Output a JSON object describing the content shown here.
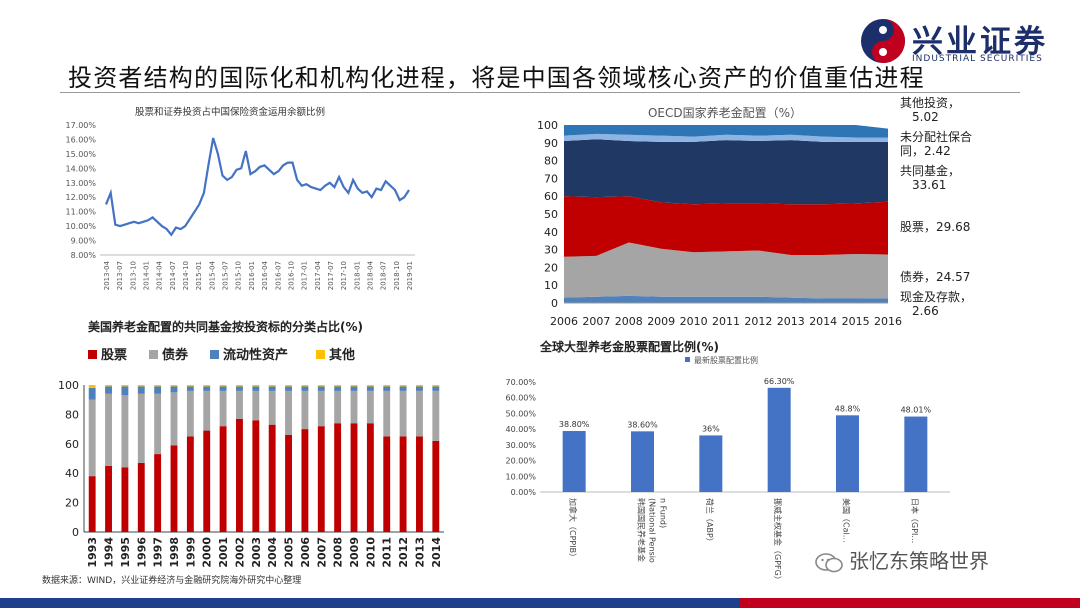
{
  "slide": {
    "title": "投资者结构的国际化和机构化进程，将是中国各领域核心资产的价值重估进程",
    "source_note": "数据来源：WIND，兴业证券经济与金融研究院海外研究中心整理",
    "watermark": "张忆东策略世界"
  },
  "logo": {
    "name_cn": "兴业证券",
    "name_en": "INDUSTRIAL SECURITIES"
  },
  "colors": {
    "brand_blue": "#1d2f6a",
    "brand_red": "#c0001e",
    "line_blue": "#4472c4"
  },
  "chart_data": [
    {
      "id": "insurance-equity-ratio",
      "type": "line",
      "title": "股票和证券投资占中国保险资金运用余额比例",
      "ylim": [
        8,
        17
      ],
      "y_ticks": [
        "8.00%",
        "9.00%",
        "10.00%",
        "11.00%",
        "12.00%",
        "13.00%",
        "14.00%",
        "15.00%",
        "16.00%",
        "17.00%"
      ],
      "x_ticks": [
        "2013-04",
        "2013-07",
        "2013-10",
        "2014-01",
        "2014-04",
        "2014-07",
        "2014-10",
        "2015-01",
        "2015-04",
        "2015-07",
        "2015-10",
        "2016-01",
        "2016-04",
        "2016-07",
        "2016-10",
        "2017-01",
        "2017-04",
        "2017-07",
        "2017-10",
        "2018-01",
        "2018-04",
        "2018-07",
        "2018-10",
        "2019-01"
      ],
      "series": [
        {
          "values": [
            11.5,
            12.3,
            10.1,
            10.0,
            10.1,
            10.2,
            10.3,
            10.2,
            10.3,
            10.4,
            10.6,
            10.3,
            10.0,
            9.8,
            9.4,
            9.9,
            9.8,
            10.0,
            10.5,
            11.0,
            11.5,
            12.3,
            14.3,
            16.1,
            15.0,
            13.5,
            13.2,
            13.4,
            13.9,
            14.0,
            15.2,
            13.6,
            13.8,
            14.1,
            14.2,
            13.9,
            13.6,
            13.8,
            14.2,
            14.4,
            14.4,
            13.2,
            12.8,
            12.9,
            12.7,
            12.6,
            12.5,
            12.8,
            13.0,
            12.7,
            13.4,
            12.7,
            12.3,
            13.2,
            12.6,
            12.3,
            12.4,
            12.0,
            12.6,
            12.5,
            13.1,
            12.8,
            12.5,
            11.8,
            12.0,
            12.5
          ]
        }
      ]
    },
    {
      "id": "oecd-pension-allocation",
      "type": "area",
      "title": "OECD国家养老金配置（%）",
      "ylim": [
        0,
        100
      ],
      "y_ticks": [
        "0",
        "10",
        "20",
        "30",
        "40",
        "50",
        "60",
        "70",
        "80",
        "90",
        "100"
      ],
      "categories": [
        "2006",
        "2007",
        "2008",
        "2009",
        "2010",
        "2011",
        "2012",
        "2013",
        "2014",
        "2015",
        "2016"
      ],
      "series": [
        {
          "name": "现金及存款",
          "values": [
            3,
            3.5,
            4,
            3.5,
            3.5,
            3.5,
            3.5,
            3,
            2.5,
            2.5,
            2.66
          ],
          "color": "#4f81bd"
        },
        {
          "name": "债券",
          "values": [
            23,
            23,
            30,
            27,
            25,
            25.5,
            26,
            24,
            24.5,
            25,
            24.57
          ],
          "color": "#a5a5a5"
        },
        {
          "name": "股票",
          "values": [
            34,
            33,
            26,
            26,
            27,
            27,
            26.5,
            28.5,
            28.5,
            28.5,
            29.68
          ],
          "color": "#c00000"
        },
        {
          "name": "共同基金",
          "values": [
            31,
            32.5,
            31,
            34,
            35,
            35.5,
            35,
            36,
            35,
            34.5,
            33.61
          ],
          "color": "#1f3864"
        },
        {
          "name": "未分配社保合同",
          "values": [
            3,
            3,
            3.5,
            3.5,
            3,
            3,
            3,
            3,
            3,
            2.5,
            2.42
          ],
          "color": "#8eb4e3"
        },
        {
          "name": "其他投资",
          "values": [
            6,
            5,
            5.5,
            6,
            6.5,
            5.5,
            6,
            5.5,
            6.5,
            7,
            5.02
          ],
          "color": "#2e75b6"
        }
      ],
      "annotations": [
        {
          "text": "其他投资，5.02"
        },
        {
          "text": "未分配社保合同，2.42"
        },
        {
          "text": "共同基金，33.61"
        },
        {
          "text": "股票，29.68"
        },
        {
          "text": "债券，24.57"
        },
        {
          "text": "现金及存款，2.66"
        }
      ]
    },
    {
      "id": "us-pension-mutual-fund",
      "type": "bar",
      "stacked": true,
      "title": "美国养老金配置的共同基金按投资标的分类占比(%)",
      "ylim": [
        0,
        100
      ],
      "y_ticks": [
        "0",
        "20",
        "40",
        "60",
        "80",
        "100"
      ],
      "legend_position": "top",
      "categories": [
        "1993",
        "1994",
        "1995",
        "1996",
        "1997",
        "1998",
        "1999",
        "2000",
        "2001",
        "2002",
        "2003",
        "2004",
        "2005",
        "2006",
        "2007",
        "2008",
        "2009",
        "2010",
        "2011",
        "2012",
        "2013",
        "2014"
      ],
      "series": [
        {
          "name": "股票",
          "color": "#c00000",
          "values": [
            38,
            45,
            44,
            47,
            53,
            59,
            65,
            69,
            72,
            77,
            76,
            73,
            66,
            70,
            72,
            74,
            74,
            74,
            65,
            65,
            65,
            62
          ]
        },
        {
          "name": "债券",
          "color": "#a5a5a5",
          "values": [
            52,
            49,
            49,
            47,
            41,
            36,
            31,
            27,
            24,
            19,
            20,
            23,
            30,
            26,
            24,
            22,
            22,
            22,
            31,
            31,
            31,
            34
          ]
        },
        {
          "name": "流动性资产",
          "color": "#4f81bd",
          "values": [
            8,
            5,
            6,
            5,
            5,
            4,
            3,
            3,
            3,
            3,
            3,
            3,
            3,
            3,
            3,
            3,
            3,
            3,
            3,
            3,
            3,
            3
          ]
        },
        {
          "name": "其他",
          "color": "#ffc000",
          "values": [
            2,
            1,
            1,
            1,
            1,
            1,
            1,
            1,
            1,
            1,
            1,
            1,
            1,
            1,
            1,
            1,
            1,
            1,
            1,
            1,
            1,
            1
          ]
        }
      ]
    },
    {
      "id": "global-pension-equity",
      "type": "bar",
      "title": "全球大型养老金股票配置比例(%)",
      "legend": "最新股票配置比例",
      "ylim": [
        0,
        70
      ],
      "y_ticks": [
        "0.00%",
        "10.00%",
        "20.00%",
        "30.00%",
        "40.00%",
        "50.00%",
        "60.00%",
        "70.00%"
      ],
      "categories": [
        "加拿大（CPPIB）",
        "韩国国民养老基金(NationalPension Fund)",
        "荷兰（ABP）",
        "挪威主权基金（GPFG）",
        "美国（CalPERS）",
        "日本（GPIF）"
      ],
      "tick_labels": [
        "加拿大（CPPIB）",
        "韩国国民养老基金(National Pension Fund)",
        "荷兰（ABP）",
        "挪威主权基金（GPFG）",
        "美国（Cal…",
        "日本（GPI…"
      ],
      "values": [
        38.8,
        38.6,
        36,
        66.3,
        48.8,
        48.01
      ],
      "data_labels": [
        "38.80%",
        "38.60%",
        "36%",
        "66.30%",
        "48.8%",
        "48.01%"
      ],
      "color": "#4472c4"
    }
  ]
}
